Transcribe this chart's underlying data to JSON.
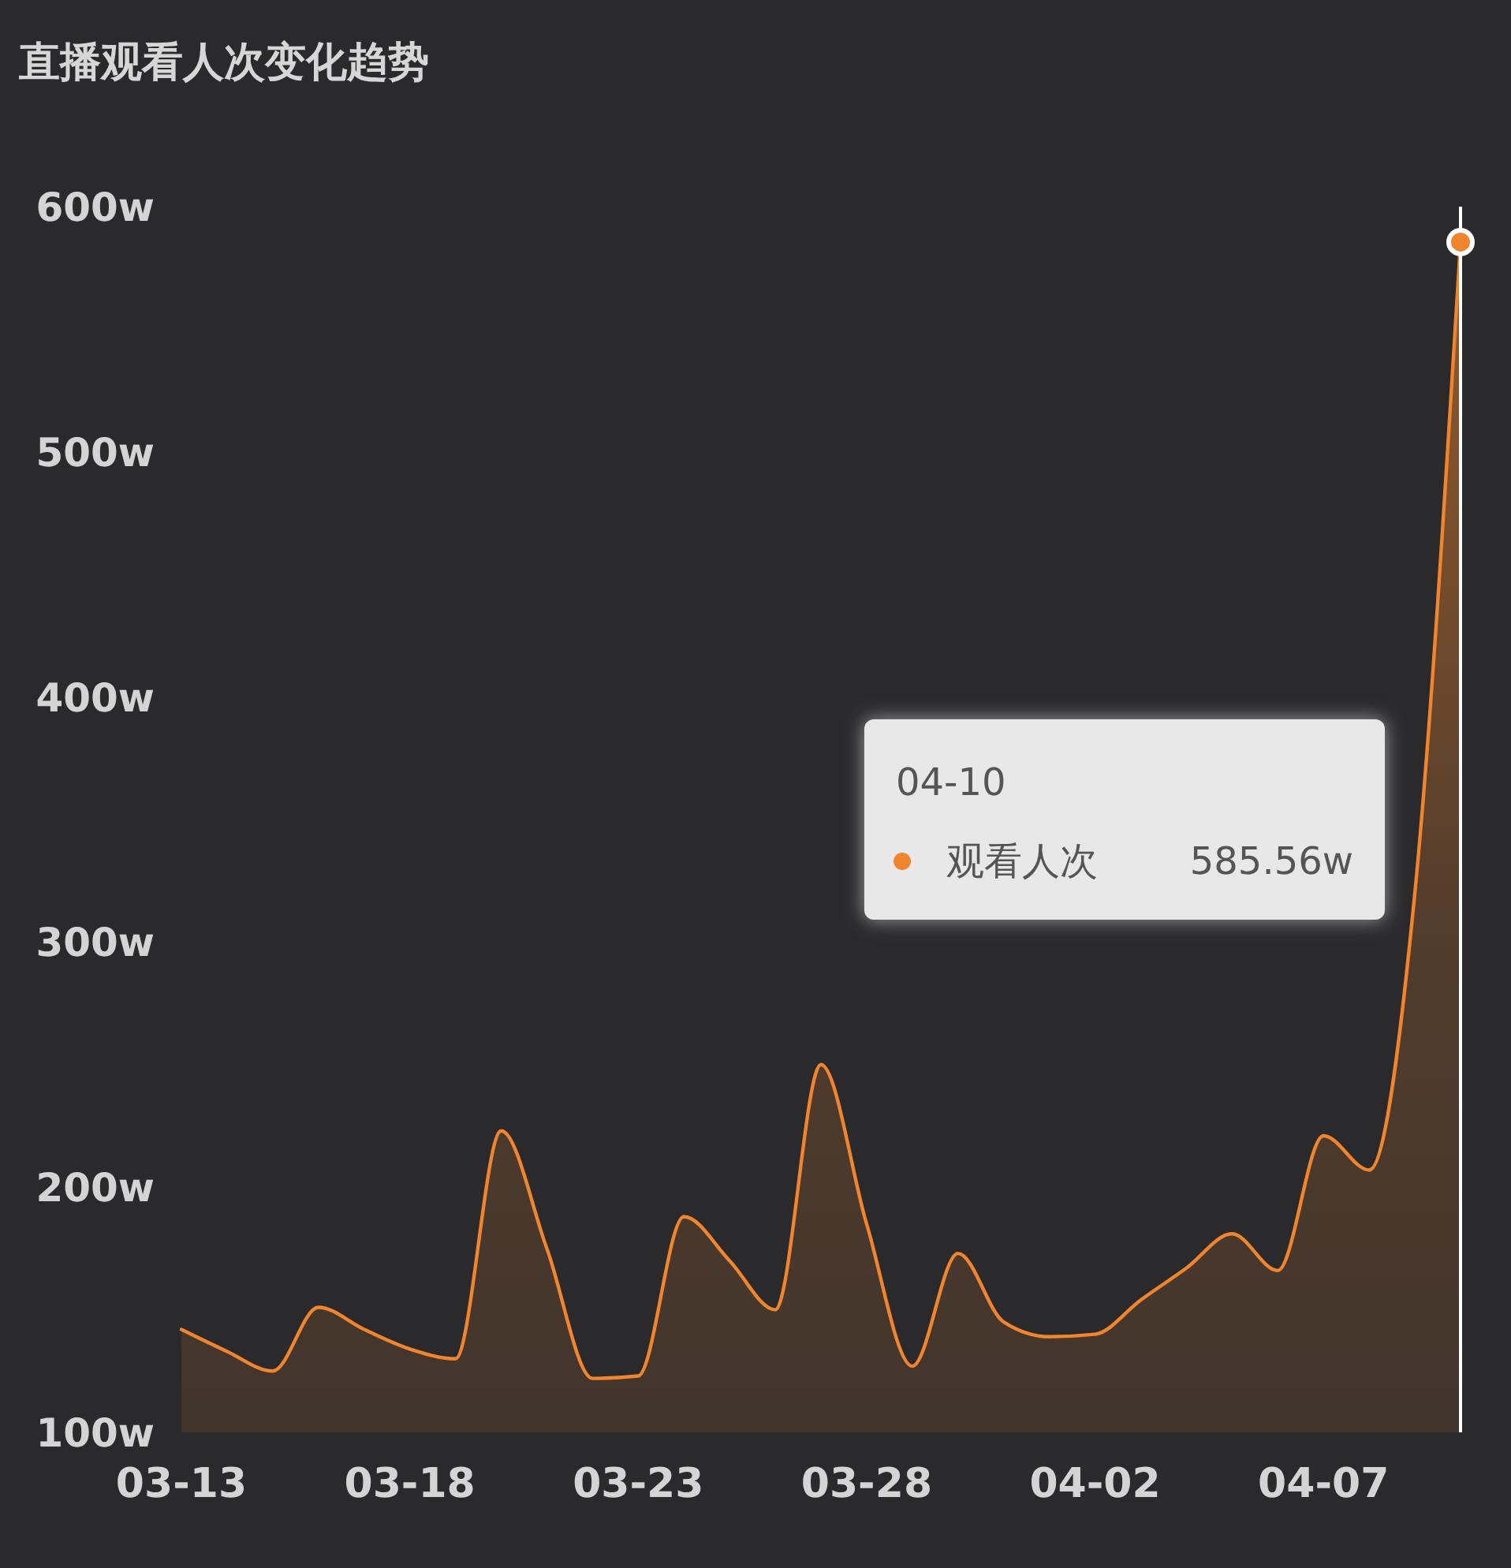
{
  "chart_data": {
    "type": "area",
    "title": "直播观看人次变化趋势",
    "x": [
      "--03-13",
      "--03-14",
      "--03-15",
      "--03-16",
      "--03-17",
      "--03-18",
      "--03-19",
      "--03-20",
      "--03-21",
      "--03-22",
      "--03-23",
      "--03-24",
      "--03-25",
      "--03-26",
      "--03-27",
      "--03-28",
      "--03-29",
      "--03-30",
      "--03-31",
      "--04-01",
      "--04-02",
      "--04-03",
      "--04-04",
      "--04-05",
      "--04-06",
      "--04-07",
      "--04-08",
      "--04-09",
      "--04-10"
    ],
    "series": [
      {
        "name": "观看人次",
        "color": "#f0852d",
        "values": [
          142,
          133,
          125,
          151,
          142,
          134,
          130,
          223,
          175,
          122,
          123,
          188,
          170,
          150,
          250,
          185,
          127,
          173,
          145,
          139,
          140,
          154,
          167,
          181,
          166,
          221,
          207,
          320,
          585.56
        ]
      }
    ],
    "xlim": [
      "--03-13",
      "--04-10"
    ],
    "xticks": [
      {
        "value": "--03-13",
        "label": "03-13"
      },
      {
        "value": "--03-18",
        "label": "03-18"
      },
      {
        "value": "--03-23",
        "label": "03-23"
      },
      {
        "value": "--03-28",
        "label": "03-28"
      },
      {
        "value": "--04-02",
        "label": "04-02"
      },
      {
        "value": "--04-07",
        "label": "04-07"
      }
    ],
    "ylim": [
      100,
      600
    ],
    "yticks": [
      {
        "value": 100,
        "label": "100w"
      },
      {
        "value": 200,
        "label": "200w"
      },
      {
        "value": 300,
        "label": "300w"
      },
      {
        "value": 400,
        "label": "400w"
      },
      {
        "value": 500,
        "label": "500w"
      },
      {
        "value": 600,
        "label": "600w"
      }
    ],
    "ref_lines": [
      {
        "axis": "x",
        "value": "--04-10",
        "color": "#ffffff"
      }
    ],
    "annotations": [
      "04-10",
      "585.56w"
    ],
    "legend": "right"
  }
}
